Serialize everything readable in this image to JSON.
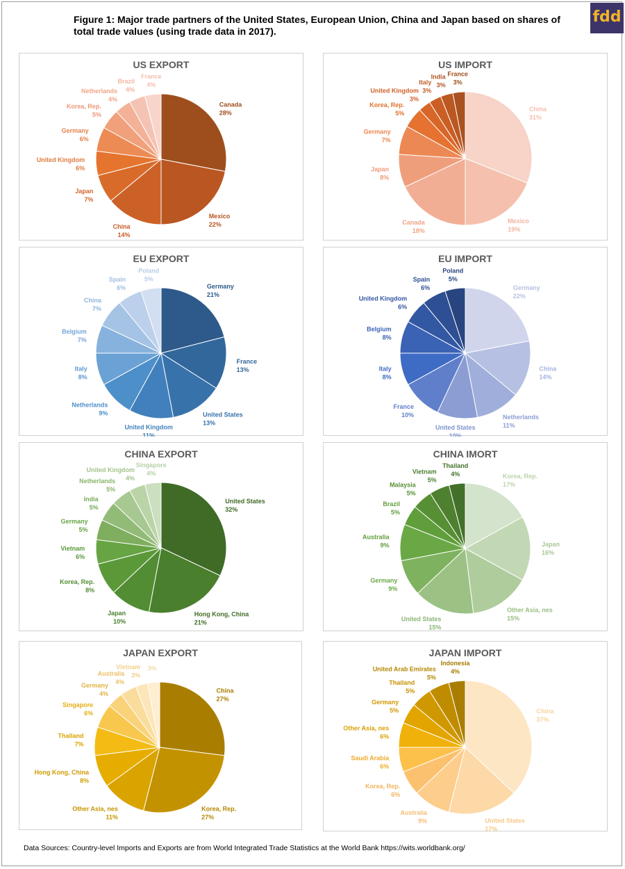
{
  "figure_title": "Figure 1: Major trade partners of the United States, European Union, China and Japan based on shares of total trade values (using trade data in 2017).",
  "logo_text": "fdd",
  "source_note": "Data Sources: Country-level Imports and Exports are from World Integrated Trade Statistics at the World Bank https://wits.worldbank.org/",
  "chart_data": [
    {
      "type": "pie",
      "title": "US EXPORT",
      "labels": [
        "Canada",
        "Mexico",
        "China",
        "Japan",
        "United Kingdom",
        "Germany",
        "Korea, Rep.",
        "Netherlands",
        "Brazil",
        "France"
      ],
      "value_labels": [
        "28%",
        "22%",
        "14%",
        "7%",
        "6%",
        "6%",
        "5%",
        "4%",
        "4%",
        "4%"
      ],
      "values": [
        28,
        22,
        14,
        7,
        6,
        6,
        5,
        4,
        4,
        4
      ],
      "colors": [
        "#9e4e1c",
        "#b95622",
        "#cc6127",
        "#d96b2a",
        "#e5742f",
        "#ec8b53",
        "#f0a07a",
        "#f3b198",
        "#f5c3b3",
        "#f8d5cb"
      ],
      "label_colors": [
        "#9e4e1c",
        "#b95622",
        "#c65d25",
        "#d2652a",
        "#e07b3e",
        "#e4824a",
        "#ee9878",
        "#f0a588",
        "#f3b6a2",
        "#f4bfae"
      ]
    },
    {
      "type": "pie",
      "title": "US IMPORT",
      "labels": [
        "China",
        "Mexico",
        "Canada",
        "Japan",
        "Germany",
        "Korea, Rep.",
        "United Kingdom",
        "Italy",
        "India",
        "France"
      ],
      "value_labels": [
        "31%",
        "19%",
        "18%",
        "8%",
        "7%",
        "5%",
        "3%",
        "3%",
        "3%",
        "3%"
      ],
      "values": [
        31,
        19,
        18,
        8,
        7,
        5,
        3,
        3,
        3,
        3
      ],
      "colors": [
        "#f7d3c8",
        "#f5c0ad",
        "#f2ae95",
        "#ef9e7c",
        "#ec8854",
        "#e57230",
        "#d86628",
        "#ca5e24",
        "#bb5721",
        "#a9511f"
      ],
      "label_colors": [
        "#f4bfae",
        "#f3b39f",
        "#f0a285",
        "#ef9a7a",
        "#ea864f",
        "#e0702e",
        "#cf6128",
        "#c45c25",
        "#b35422",
        "#9e4e1c"
      ]
    },
    {
      "type": "pie",
      "title": "EU EXPORT",
      "labels": [
        "Germany",
        "France",
        "United States",
        "United Kingdom",
        "Netherlands",
        "Italy",
        "Belgium",
        "China",
        "Spain",
        "Poland"
      ],
      "value_labels": [
        "21%",
        "13%",
        "13%",
        "11%",
        "9%",
        "8%",
        "7%",
        "7%",
        "6%",
        "5%"
      ],
      "values": [
        21,
        13,
        13,
        11,
        9,
        8,
        7,
        7,
        6,
        5
      ],
      "colors": [
        "#2d5a8a",
        "#32679c",
        "#3872ab",
        "#4180bc",
        "#4d8fc9",
        "#6ba2d6",
        "#87b2dd",
        "#a5c3e5",
        "#bcd0eb",
        "#d2def1"
      ],
      "label_colors": [
        "#2d5a8a",
        "#32679c",
        "#3872ab",
        "#4180bc",
        "#4d8fc9",
        "#5f98d0",
        "#75a6d9",
        "#8fb3de",
        "#a1bfe2",
        "#b8cce8"
      ]
    },
    {
      "type": "pie",
      "title": "EU IMPORT",
      "labels": [
        "Germany",
        "China",
        "Netherlands",
        "United States",
        "France",
        "Italy",
        "Belgium",
        "United Kingdom",
        "Spain",
        "Poland"
      ],
      "value_labels": [
        "22%",
        "14%",
        "11%",
        "10%",
        "10%",
        "8%",
        "8%",
        "6%",
        "6%",
        "5%"
      ],
      "values": [
        22,
        14,
        11,
        10,
        10,
        8,
        8,
        6,
        6,
        5
      ],
      "colors": [
        "#d0d5ec",
        "#b6c0e3",
        "#a0aedb",
        "#8b9dd3",
        "#5f7fca",
        "#3e6bc4",
        "#3a62b5",
        "#3358a3",
        "#2e4f93",
        "#294580"
      ],
      "label_colors": [
        "#b6c0e3",
        "#a6b3dd",
        "#8e9fd4",
        "#7f93cf",
        "#5f7fca",
        "#3e6bc4",
        "#3a62b5",
        "#3358a3",
        "#2e4f93",
        "#294580"
      ]
    },
    {
      "type": "pie",
      "title": "CHINA EXPORT",
      "labels": [
        "United States",
        "Hong Kong, China",
        "Japan",
        "Korea, Rep.",
        "Vietnam",
        "Germany",
        "India",
        "Netherlands",
        "United Kingdom",
        "Singapore"
      ],
      "value_labels": [
        "32%",
        "21%",
        "10%",
        "8%",
        "6%",
        "5%",
        "5%",
        "5%",
        "4%",
        "4%"
      ],
      "values": [
        32,
        21,
        10,
        8,
        6,
        5,
        5,
        5,
        4,
        4
      ],
      "colors": [
        "#3f6b26",
        "#4a7f2e",
        "#538d33",
        "#5b9938",
        "#67a444",
        "#7eae5e",
        "#93bb78",
        "#a7c891",
        "#bad4a8",
        "#ccdfc0"
      ],
      "label_colors": [
        "#3f6b26",
        "#3f6b26",
        "#4a7f2e",
        "#538d33",
        "#5b9938",
        "#67a444",
        "#76aa55",
        "#88b46b",
        "#a3c48b",
        "#b7d1a5"
      ]
    },
    {
      "type": "pie",
      "title": "CHINA IMORT",
      "labels": [
        "Korea, Rep.",
        "Japan",
        "Other Asia, nes",
        "United States",
        "Germany",
        "Australia",
        "Brazil",
        "Malaysia",
        "Vietnam",
        "Thailand"
      ],
      "value_labels": [
        "17%",
        "16%",
        "15%",
        "15%",
        "9%",
        "9%",
        "5%",
        "5%",
        "5%",
        "4%"
      ],
      "values": [
        17,
        16,
        15,
        15,
        9,
        9,
        5,
        5,
        5,
        4
      ],
      "colors": [
        "#d4e3cb",
        "#c2d8b4",
        "#afcc9d",
        "#9bc185",
        "#7fb25f",
        "#6aa846",
        "#5f9e3a",
        "#578f35",
        "#4e8030",
        "#43702a"
      ],
      "label_colors": [
        "#bbd3ab",
        "#a9c895",
        "#98be82",
        "#8ab574",
        "#6aa846",
        "#5f9e3a",
        "#5f9e3a",
        "#578f35",
        "#4e8030",
        "#43702a"
      ]
    },
    {
      "type": "pie",
      "title": "JAPAN EXPORT",
      "labels": [
        "China",
        "Korea, Rep.",
        "Other Asia, nes",
        "Hong Kong, China",
        "Thailand",
        "Singapore",
        "Germany",
        "Australia",
        "Vietnam",
        ""
      ],
      "value_labels": [
        "27%",
        "27%",
        "11%",
        "8%",
        "7%",
        "6%",
        "4%",
        "4%",
        "3%",
        "3%"
      ],
      "values": [
        27,
        27,
        11,
        8,
        7,
        6,
        4,
        4,
        3,
        3
      ],
      "colors": [
        "#a97e00",
        "#c39200",
        "#d9a300",
        "#e6ad00",
        "#f3bb13",
        "#f7c84d",
        "#f9d27a",
        "#fadc9c",
        "#fce5b8",
        "#fdedd1"
      ],
      "label_colors": [
        "#a97e00",
        "#b58700",
        "#c79500",
        "#d09c00",
        "#d9a300",
        "#e6ad10",
        "#e3b244",
        "#ebc066",
        "#f1cf8a",
        "#f5dbaa"
      ]
    },
    {
      "type": "pie",
      "title": "JAPAN IMPORT",
      "labels": [
        "China",
        "United States",
        "Australia",
        "Korea, Rep.",
        "Saudi Arabia",
        "Other Asia, nes",
        "Germany",
        "Thailand",
        "United Arab Emirates",
        "Indonesia"
      ],
      "value_labels": [
        "37%",
        "17%",
        "9%",
        "6%",
        "6%",
        "6%",
        "5%",
        "5%",
        "5%",
        "4%"
      ],
      "values": [
        37,
        17,
        9,
        6,
        6,
        6,
        5,
        5,
        5,
        4
      ],
      "colors": [
        "#fde6c4",
        "#fdd9a8",
        "#fdcd8c",
        "#fcc16f",
        "#fcc14a",
        "#f0b10a",
        "#e2a500",
        "#d09800",
        "#bf8c00",
        "#a97e00"
      ],
      "label_colors": [
        "#f9d39a",
        "#f7c888",
        "#f5bd73",
        "#f3b35e",
        "#eeaa2a",
        "#d9a000",
        "#d09800",
        "#c79000",
        "#b58700",
        "#a47b00"
      ]
    }
  ]
}
